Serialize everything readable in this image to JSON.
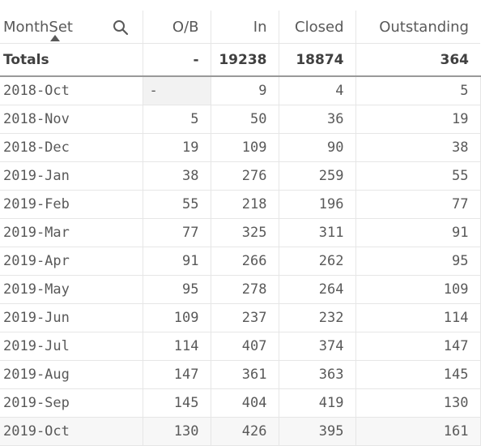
{
  "table": {
    "columns": [
      "MonthSet",
      "O/B",
      "In",
      "Closed",
      "Outstanding"
    ],
    "totals": {
      "label": "Totals",
      "ob": "-",
      "in": "19238",
      "closed": "18874",
      "outstanding": "364"
    },
    "rows": [
      {
        "month": "2018-Oct",
        "ob": "-",
        "in": "9",
        "closed": "4",
        "outstanding": "5"
      },
      {
        "month": "2018-Nov",
        "ob": "5",
        "in": "50",
        "closed": "36",
        "outstanding": "19"
      },
      {
        "month": "2018-Dec",
        "ob": "19",
        "in": "109",
        "closed": "90",
        "outstanding": "38"
      },
      {
        "month": "2019-Jan",
        "ob": "38",
        "in": "276",
        "closed": "259",
        "outstanding": "55"
      },
      {
        "month": "2019-Feb",
        "ob": "55",
        "in": "218",
        "closed": "196",
        "outstanding": "77"
      },
      {
        "month": "2019-Mar",
        "ob": "77",
        "in": "325",
        "closed": "311",
        "outstanding": "91"
      },
      {
        "month": "2019-Apr",
        "ob": "91",
        "in": "266",
        "closed": "262",
        "outstanding": "95"
      },
      {
        "month": "2019-May",
        "ob": "95",
        "in": "278",
        "closed": "264",
        "outstanding": "109"
      },
      {
        "month": "2019-Jun",
        "ob": "109",
        "in": "237",
        "closed": "232",
        "outstanding": "114"
      },
      {
        "month": "2019-Jul",
        "ob": "114",
        "in": "407",
        "closed": "374",
        "outstanding": "147"
      },
      {
        "month": "2019-Aug",
        "ob": "147",
        "in": "361",
        "closed": "363",
        "outstanding": "145"
      },
      {
        "month": "2019-Sep",
        "ob": "145",
        "in": "404",
        "closed": "419",
        "outstanding": "130"
      },
      {
        "month": "2019-Oct",
        "ob": "130",
        "in": "426",
        "closed": "395",
        "outstanding": "161"
      }
    ]
  },
  "icons": {
    "search": "search-icon",
    "sort": "sort-ascending-icon"
  }
}
